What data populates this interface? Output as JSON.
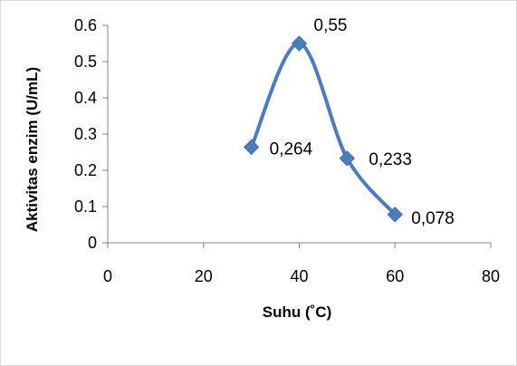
{
  "chart_data": {
    "type": "line",
    "x": [
      30,
      40,
      50,
      60
    ],
    "series": [
      {
        "values": [
          0.264,
          0.55,
          0.233,
          0.078
        ]
      }
    ],
    "data_labels": [
      "0,264",
      "0,55",
      "0,233",
      "0,078"
    ],
    "xlabel": "Suhu (˚C)",
    "ylabel": "Aktivitas enzim (U/mL)",
    "xlim": [
      0,
      80
    ],
    "ylim": [
      0,
      0.6
    ],
    "x_ticks": [
      "0",
      "20",
      "40",
      "60",
      "80"
    ],
    "y_ticks": [
      "0",
      "0.1",
      "0.2",
      "0.3",
      "0.4",
      "0.5",
      "0.6"
    ],
    "grid": false,
    "smooth": true,
    "marker": "diamond",
    "line_color": "#4a7dbd",
    "marker_color": "#4a7dbd"
  }
}
